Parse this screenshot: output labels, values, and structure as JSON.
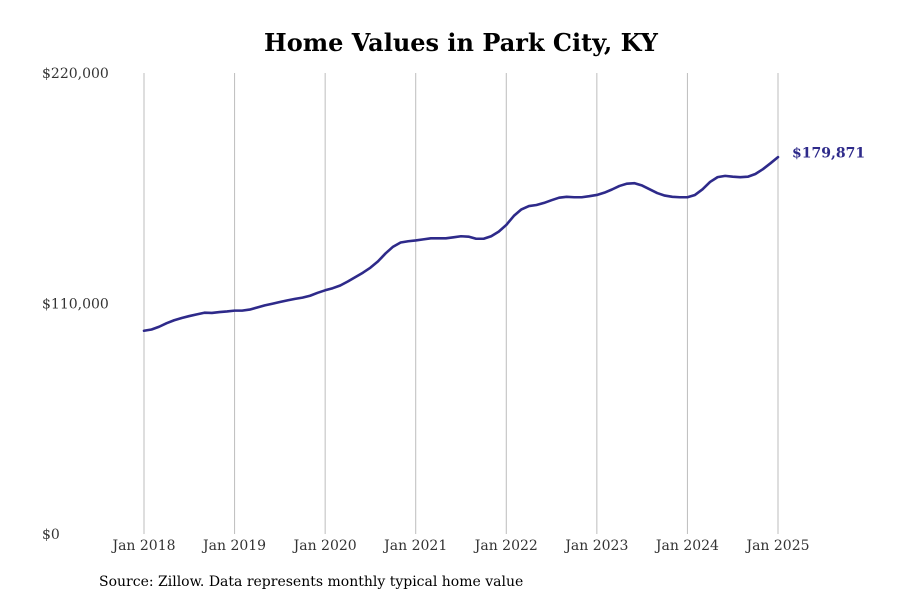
{
  "chart_data": {
    "type": "line",
    "title": "Home Values in Park City, KY",
    "xlabel": "",
    "ylabel": "",
    "xlim": [
      "2018-01",
      "2025-01"
    ],
    "ylim": [
      0,
      220000
    ],
    "grid": "vertical",
    "legend": "none",
    "x_ticks": [
      "Jan 2018",
      "Jan 2019",
      "Jan 2020",
      "Jan 2021",
      "Jan 2022",
      "Jan 2023",
      "Jan 2024",
      "Jan 2025"
    ],
    "y_ticks": [
      {
        "value": 0,
        "label": "$0"
      },
      {
        "value": 110000,
        "label": "$110,000"
      },
      {
        "value": 220000,
        "label": "$220,000"
      }
    ],
    "end_label": "$179,871",
    "series": [
      {
        "color": "#2e2a8a",
        "points": [
          [
            "2018-01",
            97000
          ],
          [
            "2018-02",
            97600
          ],
          [
            "2018-03",
            98900
          ],
          [
            "2018-04",
            100600
          ],
          [
            "2018-05",
            102000
          ],
          [
            "2018-06",
            103100
          ],
          [
            "2018-07",
            104000
          ],
          [
            "2018-08",
            104800
          ],
          [
            "2018-09",
            105600
          ],
          [
            "2018-10",
            105500
          ],
          [
            "2018-11",
            105900
          ],
          [
            "2018-12",
            106200
          ],
          [
            "2019-01",
            106600
          ],
          [
            "2019-02",
            106600
          ],
          [
            "2019-03",
            107100
          ],
          [
            "2019-04",
            108100
          ],
          [
            "2019-05",
            109100
          ],
          [
            "2019-06",
            109900
          ],
          [
            "2019-07",
            110700
          ],
          [
            "2019-08",
            111500
          ],
          [
            "2019-09",
            112200
          ],
          [
            "2019-10",
            112800
          ],
          [
            "2019-11",
            113700
          ],
          [
            "2019-12",
            115100
          ],
          [
            "2020-01",
            116300
          ],
          [
            "2020-02",
            117300
          ],
          [
            "2020-03",
            118600
          ],
          [
            "2020-04",
            120500
          ],
          [
            "2020-05",
            122600
          ],
          [
            "2020-06",
            124700
          ],
          [
            "2020-07",
            127100
          ],
          [
            "2020-08",
            130100
          ],
          [
            "2020-09",
            133900
          ],
          [
            "2020-10",
            137100
          ],
          [
            "2020-11",
            139100
          ],
          [
            "2020-12",
            139700
          ],
          [
            "2021-01",
            140100
          ],
          [
            "2021-02",
            140600
          ],
          [
            "2021-03",
            141100
          ],
          [
            "2021-04",
            141100
          ],
          [
            "2021-05",
            141100
          ],
          [
            "2021-06",
            141600
          ],
          [
            "2021-07",
            142100
          ],
          [
            "2021-08",
            141900
          ],
          [
            "2021-09",
            140900
          ],
          [
            "2021-10",
            140900
          ],
          [
            "2021-11",
            142100
          ],
          [
            "2021-12",
            144300
          ],
          [
            "2022-01",
            147500
          ],
          [
            "2022-02",
            151800
          ],
          [
            "2022-03",
            154900
          ],
          [
            "2022-04",
            156500
          ],
          [
            "2022-05",
            157000
          ],
          [
            "2022-06",
            158000
          ],
          [
            "2022-07",
            159300
          ],
          [
            "2022-08",
            160500
          ],
          [
            "2022-09",
            160900
          ],
          [
            "2022-10",
            160700
          ],
          [
            "2022-11",
            160700
          ],
          [
            "2022-12",
            161200
          ],
          [
            "2023-01",
            161800
          ],
          [
            "2023-02",
            162900
          ],
          [
            "2023-03",
            164400
          ],
          [
            "2023-04",
            166100
          ],
          [
            "2023-05",
            167200
          ],
          [
            "2023-06",
            167400
          ],
          [
            "2023-07",
            166300
          ],
          [
            "2023-08",
            164500
          ],
          [
            "2023-09",
            162700
          ],
          [
            "2023-10",
            161500
          ],
          [
            "2023-11",
            160900
          ],
          [
            "2023-12",
            160700
          ],
          [
            "2024-01",
            160700
          ],
          [
            "2024-02",
            161800
          ],
          [
            "2024-03",
            164500
          ],
          [
            "2024-04",
            168000
          ],
          [
            "2024-05",
            170300
          ],
          [
            "2024-06",
            170900
          ],
          [
            "2024-07",
            170500
          ],
          [
            "2024-08",
            170300
          ],
          [
            "2024-09",
            170500
          ],
          [
            "2024-10",
            171800
          ],
          [
            "2024-11",
            174100
          ],
          [
            "2024-12",
            176900
          ],
          [
            "2025-01",
            179871
          ]
        ]
      }
    ]
  },
  "source_note": "Source: Zillow. Data represents monthly typical home value"
}
